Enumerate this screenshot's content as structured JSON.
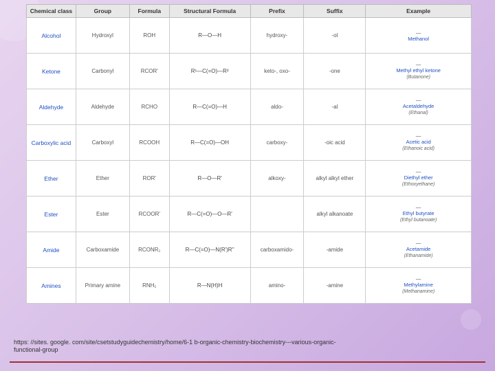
{
  "table": {
    "headers": [
      "Chemical class",
      "Group",
      "Formula",
      "Structural Formula",
      "Prefix",
      "Suffix",
      "Example"
    ],
    "rows": [
      {
        "class": "Alcohol",
        "group": "Hydroxyl",
        "formula": "ROH",
        "struct": "R—O—H",
        "prefix": "hydroxy-",
        "suffix": "-ol",
        "example": "Methanol",
        "example_sub": ""
      },
      {
        "class": "Ketone",
        "group": "Carbonyl",
        "formula": "RCOR'",
        "struct": "R¹—C(=O)—R²",
        "prefix": "keto-, oxo-",
        "suffix": "-one",
        "example": "Methyl ethyl ketone",
        "example_sub": "(Butanone)"
      },
      {
        "class": "Aldehyde",
        "group": "Aldehyde",
        "formula": "RCHO",
        "struct": "R—C(=O)—H",
        "prefix": "aldo-",
        "suffix": "-al",
        "example": "Acetaldehyde",
        "example_sub": "(Ethanal)"
      },
      {
        "class": "Carboxylic acid",
        "group": "Carboxyl",
        "formula": "RCOOH",
        "struct": "R—C(=O)—OH",
        "prefix": "carboxy-",
        "suffix": "-oic acid",
        "example": "Acetic acid",
        "example_sub": "(Ethanoic acid)"
      },
      {
        "class": "Ether",
        "group": "Ether",
        "formula": "ROR'",
        "struct": "R—O—R'",
        "prefix": "alkoxy-",
        "suffix": "alkyl alkyl ether",
        "example": "Diethyl ether",
        "example_sub": "(Ethoxyethane)"
      },
      {
        "class": "Ester",
        "group": "Ester",
        "formula": "RCOOR'",
        "struct": "R—C(=O)—O—R'",
        "prefix": "",
        "suffix": "alkyl alkanoate",
        "example": "Ethyl butyrate",
        "example_sub": "(Ethyl butanoate)"
      },
      {
        "class": "Amide",
        "group": "Carboxamide",
        "formula": "RCONR₂",
        "struct": "R—C(=O)—N(R')R''",
        "prefix": "carboxamido-",
        "suffix": "-amide",
        "example": "Acetamide",
        "example_sub": "(Ethanamide)"
      },
      {
        "class": "Amines",
        "group": "Primary amine",
        "formula": "RNH₂",
        "struct": "R—N(H)H",
        "prefix": "amino-",
        "suffix": "-amine",
        "example": "Methylamine",
        "example_sub": "(Methanamine)"
      }
    ]
  },
  "caption": {
    "line1": "https: //sites. google. com/site/csetstudyguidechemistry/home/6-1 b-organic-chemistry-biochemistry---various-organic-",
    "line2": "functional-group"
  },
  "colors": {
    "header_bg": "#e8e8e8",
    "border": "#cccccc",
    "link_blue": "#2050c0",
    "text": "#555555",
    "bottom_line": "#a03030",
    "bg_gradient_start": "#e8d5f0",
    "bg_gradient_end": "#c8a8e0"
  }
}
